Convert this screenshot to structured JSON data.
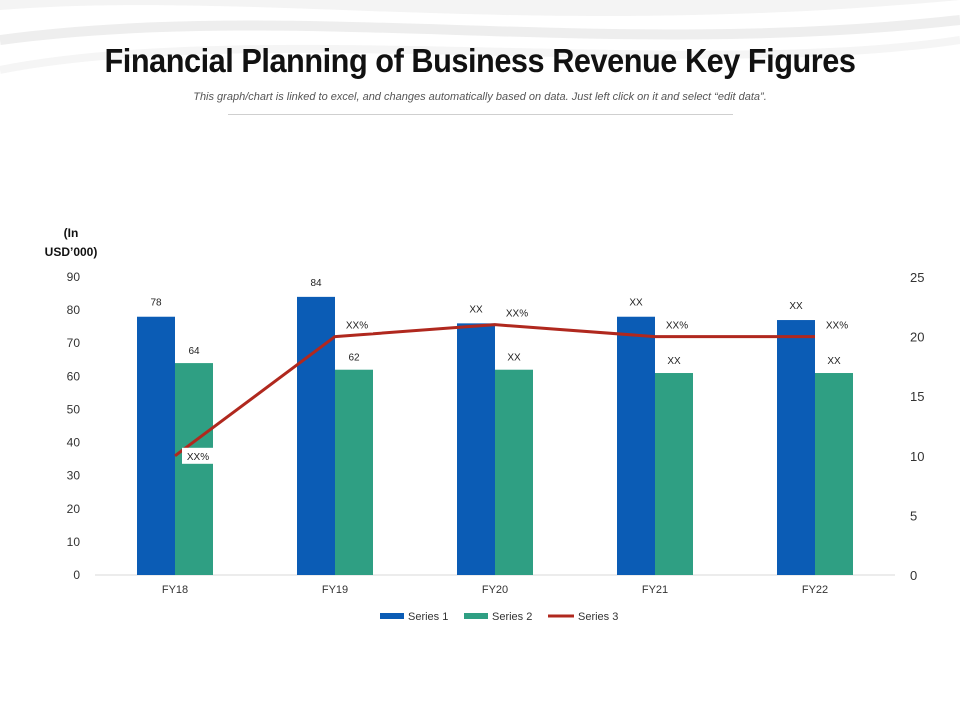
{
  "header": {
    "title": "Financial Planning of Business Revenue Key Figures",
    "subtitle": "This graph/chart is linked to excel, and changes automatically based on data. Just left click on it and select “edit data”."
  },
  "colors": {
    "series1": "#0b5cb5",
    "series2": "#2f9f83",
    "series3": "#b0281e",
    "axis_text": "#333333",
    "axis_line": "#d9d9d9"
  },
  "chart_data": {
    "type": "bar",
    "title": "Financial Planning of Business Revenue Key Figures",
    "y_unit_label": "(In USD’000)",
    "categories": [
      "FY18",
      "FY19",
      "FY20",
      "FY21",
      "FY22"
    ],
    "ylim": [
      0,
      90
    ],
    "yticks": [
      0,
      10,
      20,
      30,
      40,
      50,
      60,
      70,
      80,
      90
    ],
    "y2lim": [
      0,
      25
    ],
    "y2ticks": [
      0,
      5,
      10,
      15,
      20,
      25
    ],
    "legend_position": "bottom",
    "series": [
      {
        "name": "Series 1",
        "type": "bar",
        "axis": "left",
        "values": [
          78,
          84,
          76,
          78,
          77
        ],
        "labels": [
          "78",
          "84",
          "XX",
          "XX",
          "XX"
        ]
      },
      {
        "name": "Series 2",
        "type": "bar",
        "axis": "left",
        "values": [
          64,
          62,
          62,
          61,
          61
        ],
        "labels": [
          "64",
          "62",
          "XX",
          "XX",
          "XX"
        ]
      },
      {
        "name": "Series 3",
        "type": "line",
        "axis": "right",
        "values": [
          10,
          20,
          21,
          20,
          20
        ],
        "labels": [
          "XX%",
          "XX%",
          "XX%",
          "XX%",
          "XX%"
        ]
      }
    ]
  }
}
